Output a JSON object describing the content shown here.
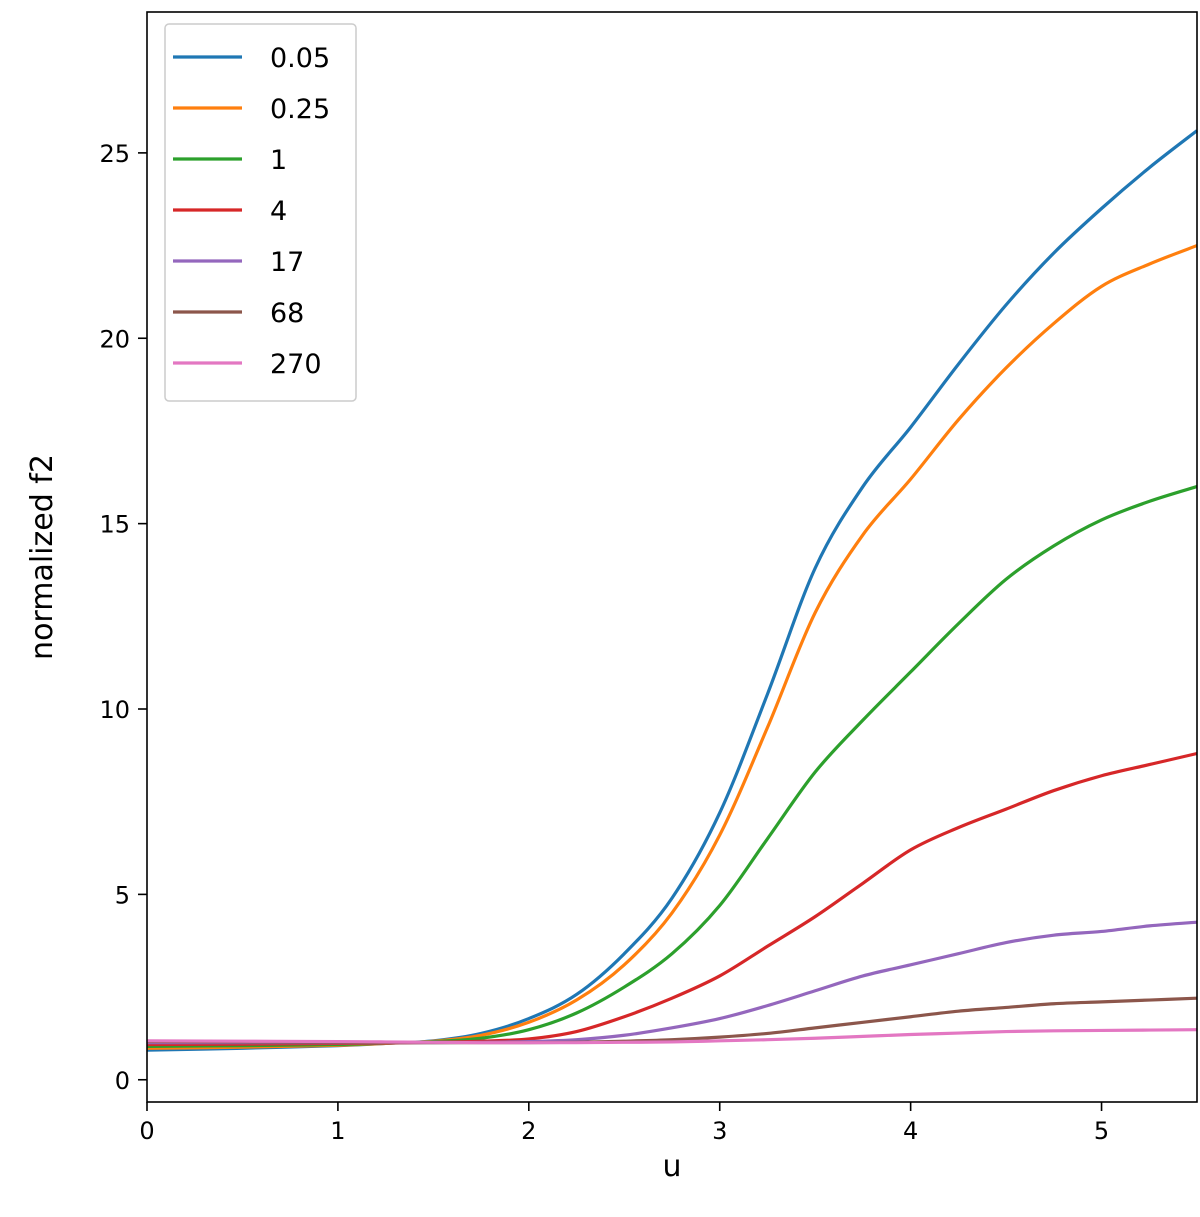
{
  "chart_data": {
    "type": "line",
    "title": "",
    "xlabel": "u",
    "ylabel": "normalized f2",
    "xlim": [
      0,
      5.5
    ],
    "ylim": [
      -0.6,
      28.8
    ],
    "xticks": [
      0,
      1,
      2,
      3,
      4,
      5
    ],
    "yticks": [
      0,
      5,
      10,
      15,
      20,
      25
    ],
    "grid": false,
    "legend": "top-left",
    "x": [
      0,
      0.5,
      1.0,
      1.25,
      1.5,
      1.75,
      2.0,
      2.25,
      2.5,
      2.75,
      3.0,
      3.25,
      3.5,
      3.75,
      4.0,
      4.25,
      4.5,
      4.75,
      5.0,
      5.25,
      5.5
    ],
    "series": [
      {
        "name": "0.05",
        "color": "#1f77b4",
        "values": [
          0.8,
          0.85,
          0.92,
          0.98,
          1.05,
          1.25,
          1.65,
          2.3,
          3.4,
          4.9,
          7.2,
          10.4,
          13.8,
          16.0,
          17.6,
          19.3,
          20.9,
          22.3,
          23.5,
          24.6,
          25.6
        ]
      },
      {
        "name": "0.25",
        "color": "#ff7f0e",
        "values": [
          0.85,
          0.88,
          0.93,
          0.98,
          1.04,
          1.2,
          1.55,
          2.15,
          3.1,
          4.5,
          6.6,
          9.5,
          12.6,
          14.7,
          16.2,
          17.8,
          19.2,
          20.4,
          21.4,
          22.0,
          22.5
        ]
      },
      {
        "name": "1",
        "color": "#2ca02c",
        "values": [
          0.9,
          0.92,
          0.95,
          0.99,
          1.03,
          1.12,
          1.35,
          1.8,
          2.5,
          3.4,
          4.7,
          6.5,
          8.3,
          9.7,
          11.0,
          12.3,
          13.5,
          14.4,
          15.1,
          15.6,
          16.0
        ]
      },
      {
        "name": "4",
        "color": "#d62728",
        "values": [
          0.95,
          0.96,
          0.98,
          0.99,
          1.01,
          1.04,
          1.1,
          1.3,
          1.7,
          2.2,
          2.8,
          3.6,
          4.4,
          5.3,
          6.2,
          6.8,
          7.3,
          7.8,
          8.2,
          8.5,
          8.8
        ]
      },
      {
        "name": "17",
        "color": "#9467bd",
        "values": [
          1.0,
          1.0,
          1.0,
          1.0,
          1.0,
          1.01,
          1.03,
          1.08,
          1.2,
          1.4,
          1.65,
          2.0,
          2.4,
          2.8,
          3.1,
          3.4,
          3.7,
          3.9,
          4.0,
          4.15,
          4.25
        ]
      },
      {
        "name": "68",
        "color": "#8c564b",
        "values": [
          1.03,
          1.02,
          1.01,
          1.0,
          1.0,
          1.0,
          1.0,
          1.01,
          1.04,
          1.08,
          1.15,
          1.25,
          1.4,
          1.55,
          1.7,
          1.85,
          1.95,
          2.05,
          2.1,
          2.15,
          2.2
        ]
      },
      {
        "name": "270",
        "color": "#e377c2",
        "values": [
          1.05,
          1.04,
          1.03,
          1.02,
          1.01,
          1.0,
          1.0,
          1.0,
          1.01,
          1.02,
          1.05,
          1.08,
          1.12,
          1.17,
          1.22,
          1.26,
          1.3,
          1.32,
          1.33,
          1.34,
          1.35
        ]
      }
    ]
  }
}
